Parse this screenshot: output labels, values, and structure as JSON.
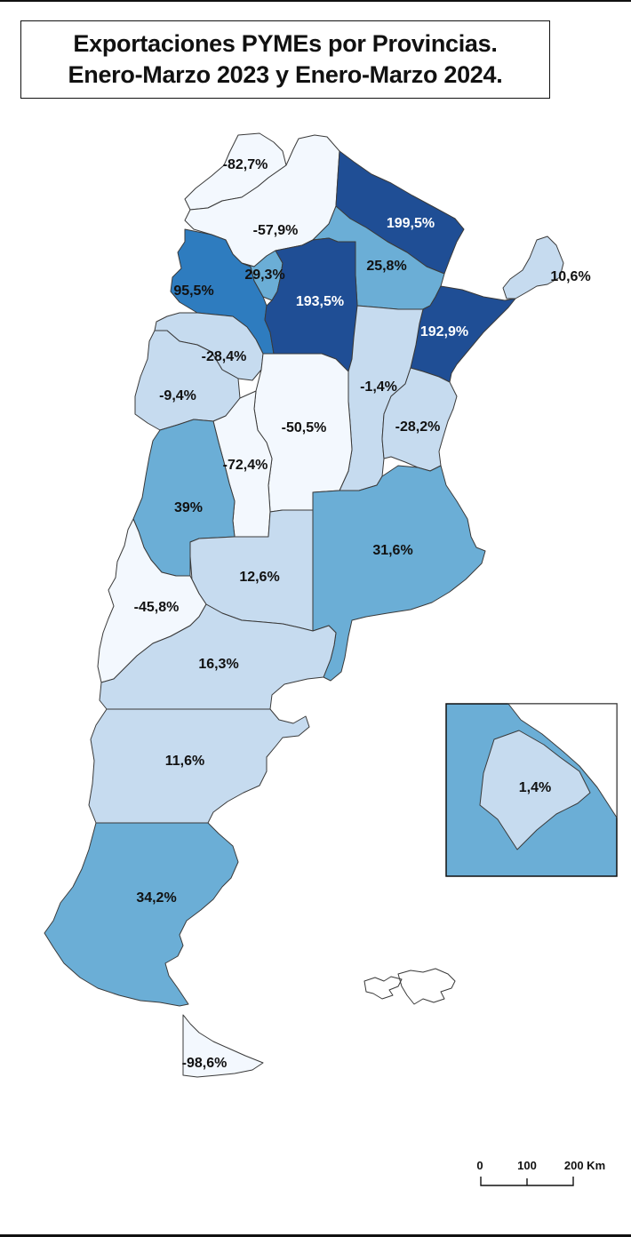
{
  "title": {
    "line1": "Exportaciones PYMEs por Provincias.",
    "line2": "Enero-Marzo 2023 y Enero-Marzo 2024."
  },
  "colors": {
    "very_light": "#f3f8fe",
    "light": "#c6dbef",
    "medium": "#6baed6",
    "strong": "#2e7cbf",
    "dark": "#1f4e95"
  },
  "provinces": [
    {
      "id": "jujuy",
      "label": "-82,7%",
      "value": -82.7,
      "class": "very_light"
    },
    {
      "id": "salta",
      "label": "-57,9%",
      "value": -57.9,
      "class": "very_light"
    },
    {
      "id": "formosa",
      "label": "199,5%",
      "value": 199.5,
      "class": "dark"
    },
    {
      "id": "chaco",
      "label": "25,8%",
      "value": 25.8,
      "class": "medium"
    },
    {
      "id": "misiones",
      "label": "10,6%",
      "value": 10.6,
      "class": "light"
    },
    {
      "id": "catamarca",
      "label": "95,5%",
      "value": 95.5,
      "class": "strong"
    },
    {
      "id": "tucuman",
      "label": "29,3%",
      "value": 29.3,
      "class": "medium"
    },
    {
      "id": "santiago",
      "label": "193,5%",
      "value": 193.5,
      "class": "dark"
    },
    {
      "id": "corrientes",
      "label": "192,9%",
      "value": 192.9,
      "class": "dark"
    },
    {
      "id": "la_rioja",
      "label": "-28,4%",
      "value": -28.4,
      "class": "light"
    },
    {
      "id": "santa_fe",
      "label": "-1,4%",
      "value": -1.4,
      "class": "light"
    },
    {
      "id": "san_juan",
      "label": "-9,4%",
      "value": -9.4,
      "class": "light"
    },
    {
      "id": "cordoba",
      "label": "-50,5%",
      "value": -50.5,
      "class": "very_light"
    },
    {
      "id": "entre_rios",
      "label": "-28,2%",
      "value": -28.2,
      "class": "light"
    },
    {
      "id": "san_luis",
      "label": "-72,4%",
      "value": -72.4,
      "class": "very_light"
    },
    {
      "id": "mendoza",
      "label": "39%",
      "value": 39,
      "class": "medium"
    },
    {
      "id": "buenos_aires",
      "label": "31,6%",
      "value": 31.6,
      "class": "medium"
    },
    {
      "id": "la_pampa",
      "label": "12,6%",
      "value": 12.6,
      "class": "light"
    },
    {
      "id": "neuquen",
      "label": "-45,8%",
      "value": -45.8,
      "class": "very_light"
    },
    {
      "id": "rio_negro",
      "label": "16,3%",
      "value": 16.3,
      "class": "light"
    },
    {
      "id": "chubut",
      "label": "11,6%",
      "value": 11.6,
      "class": "light"
    },
    {
      "id": "santa_cruz",
      "label": "34,2%",
      "value": 34.2,
      "class": "medium"
    },
    {
      "id": "tierra_del_fuego",
      "label": "-98,6%",
      "value": -98.6,
      "class": "very_light"
    }
  ],
  "inset": {
    "id": "caba",
    "label": "1,4%",
    "value": 1.4,
    "class": "light"
  },
  "scale": {
    "labels": [
      "0",
      "100",
      "200 Km"
    ]
  }
}
